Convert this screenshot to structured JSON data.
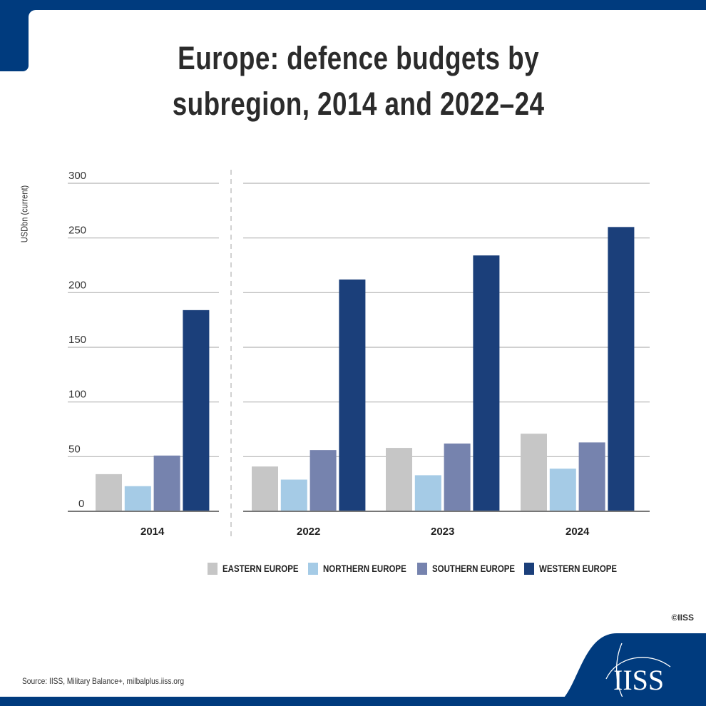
{
  "header": {
    "title_line1": "Europe: defence budgets by",
    "title_line2": "subregion, 2014 and 2022–24"
  },
  "colors": {
    "brand": "#003b7e",
    "eastern": "#c6c6c6",
    "northern": "#a5cbe6",
    "southern": "#7683ae",
    "western": "#1b3f7a"
  },
  "chart_data": {
    "type": "bar",
    "title": "Europe: defence budgets by subregion, 2014 and 2022–24",
    "xlabel": "",
    "ylabel": "USDbn (current)",
    "ylim": [
      0,
      300
    ],
    "yticks": [
      "0",
      "50",
      "100",
      "150",
      "200",
      "250",
      "300"
    ],
    "grid": true,
    "categories": [
      "2014",
      "2022",
      "2023",
      "2024"
    ],
    "panel_split": "dashed divider between 2014 and 2022",
    "legend_position": "bottom-right",
    "series": [
      {
        "name": "EASTERN EUROPE",
        "key": "eastern",
        "values": [
          34,
          41,
          58,
          71
        ]
      },
      {
        "name": "NORTHERN EUROPE",
        "key": "northern",
        "values": [
          23,
          29,
          33,
          39
        ]
      },
      {
        "name": "SOUTHERN EUROPE",
        "key": "southern",
        "values": [
          51,
          56,
          62,
          63
        ]
      },
      {
        "name": "WESTERN EUROPE",
        "key": "western",
        "values": [
          184,
          212,
          234,
          260
        ]
      }
    ]
  },
  "footer": {
    "copyright": "©IISS",
    "source": "Source: IISS, Military Balance+, milbalplus.iiss.org",
    "logo_text": "IISS"
  }
}
